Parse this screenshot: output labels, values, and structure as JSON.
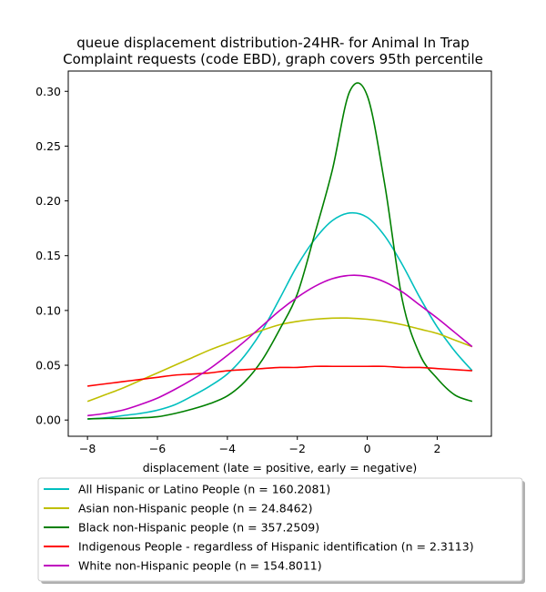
{
  "chart_data": {
    "type": "line",
    "title": [
      "queue displacement distribution-24HR-  for Animal In Trap",
      "Complaint  requests (code EBD), graph covers 95th percentile"
    ],
    "xlabel": "displacement (late = positive, early = negative)",
    "ylabel": "",
    "xlim": [
      -8.55,
      3.55
    ],
    "ylim": [
      -0.0148,
      0.3185
    ],
    "xticks": [
      -8,
      -6,
      -4,
      -2,
      0,
      2
    ],
    "xtick_labels": [
      "−8",
      "−6",
      "−4",
      "−2",
      "0",
      "2"
    ],
    "yticks": [
      0.0,
      0.05,
      0.1,
      0.15,
      0.2,
      0.25,
      0.3
    ],
    "ytick_labels": [
      "0.00",
      "0.05",
      "0.10",
      "0.15",
      "0.20",
      "0.25",
      "0.30"
    ],
    "grid": false,
    "legend_position": "below-axes",
    "x": [
      -8,
      -7.5,
      -7,
      -6.5,
      -6,
      -5.5,
      -5,
      -4.5,
      -4,
      -3.5,
      -3,
      -2.5,
      -2,
      -1.5,
      -1,
      -0.5,
      0,
      0.5,
      1,
      1.5,
      2,
      2.5,
      3
    ],
    "series": [
      {
        "name": "All Hispanic or Latino People (n = 160.2081)",
        "color": "#00bfbf",
        "values": [
          0.001,
          0.002,
          0.004,
          0.006,
          0.009,
          0.014,
          0.022,
          0.031,
          0.042,
          0.059,
          0.082,
          0.111,
          0.141,
          0.165,
          0.182,
          0.189,
          0.185,
          0.168,
          0.142,
          0.112,
          0.085,
          0.063,
          0.045
        ]
      },
      {
        "name": "Asian non-Hispanic people (n = 24.8462)",
        "color": "#bfbf00",
        "values": [
          0.017,
          0.023,
          0.029,
          0.036,
          0.043,
          0.05,
          0.057,
          0.064,
          0.07,
          0.076,
          0.082,
          0.087,
          0.09,
          0.092,
          0.093,
          0.093,
          0.092,
          0.09,
          0.087,
          0.083,
          0.079,
          0.073,
          0.067
        ]
      },
      {
        "name": "Black non-Hispanic people (n = 357.2509)",
        "color": "#008000",
        "values": [
          0.001,
          0.0015,
          0.0015,
          0.002,
          0.003,
          0.006,
          0.01,
          0.015,
          0.022,
          0.035,
          0.055,
          0.083,
          0.115,
          0.17,
          0.228,
          0.3,
          0.296,
          0.215,
          0.11,
          0.06,
          0.038,
          0.023,
          0.017
        ]
      },
      {
        "name": "Indigenous People - regardless of Hispanic identification (n = 2.3113)",
        "color": "#ff0000",
        "values": [
          0.031,
          0.033,
          0.035,
          0.037,
          0.039,
          0.041,
          0.042,
          0.043,
          0.045,
          0.046,
          0.047,
          0.048,
          0.048,
          0.049,
          0.049,
          0.049,
          0.049,
          0.049,
          0.048,
          0.048,
          0.047,
          0.046,
          0.045
        ]
      },
      {
        "name": "White non-Hispanic people (n = 154.8011)",
        "color": "#bf00bf",
        "values": [
          0.004,
          0.006,
          0.009,
          0.014,
          0.02,
          0.028,
          0.037,
          0.047,
          0.059,
          0.072,
          0.086,
          0.1,
          0.112,
          0.122,
          0.129,
          0.132,
          0.131,
          0.126,
          0.117,
          0.105,
          0.093,
          0.08,
          0.067
        ]
      }
    ]
  }
}
